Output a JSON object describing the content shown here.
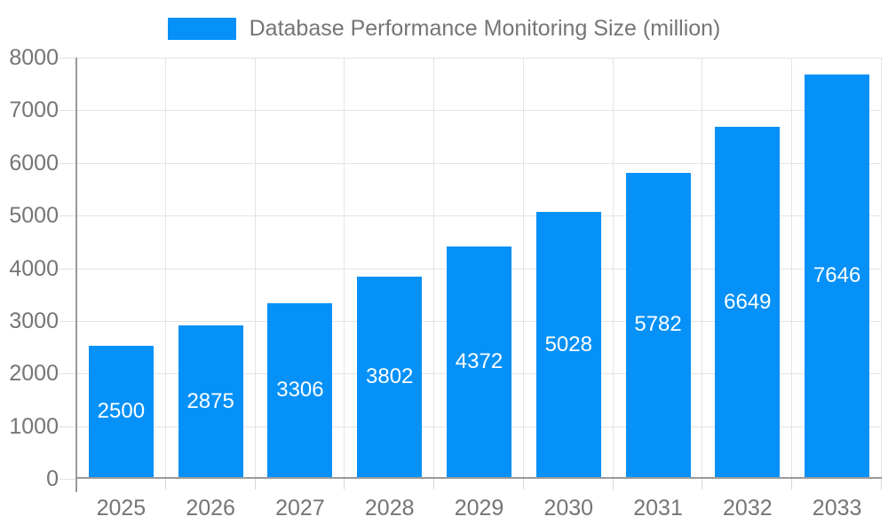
{
  "legend": {
    "label": "Database Performance Monitoring Size (million)"
  },
  "chart_data": {
    "type": "bar",
    "title": "Database Performance Monitoring Size (million)",
    "categories": [
      "2025",
      "2026",
      "2027",
      "2028",
      "2029",
      "2030",
      "2031",
      "2032",
      "2033"
    ],
    "values": [
      2500,
      2875,
      3306,
      3802,
      4372,
      5028,
      5782,
      6649,
      7646
    ],
    "xlabel": "",
    "ylabel": "",
    "ylim": [
      0,
      8000
    ],
    "ytick_step": 1000,
    "ytick_labels": [
      "0",
      "1000",
      "2000",
      "3000",
      "4000",
      "5000",
      "6000",
      "7000",
      "8000"
    ],
    "grid": true,
    "legend_position": "top",
    "value_labels": "inside-center",
    "colors": {
      "bar": "#0591f8",
      "value_label": "#ffffff",
      "axis_text": "#757575",
      "grid_line": "#e4e4e4",
      "axis_line": "#9a9a9a",
      "background": "#ffffff"
    }
  }
}
